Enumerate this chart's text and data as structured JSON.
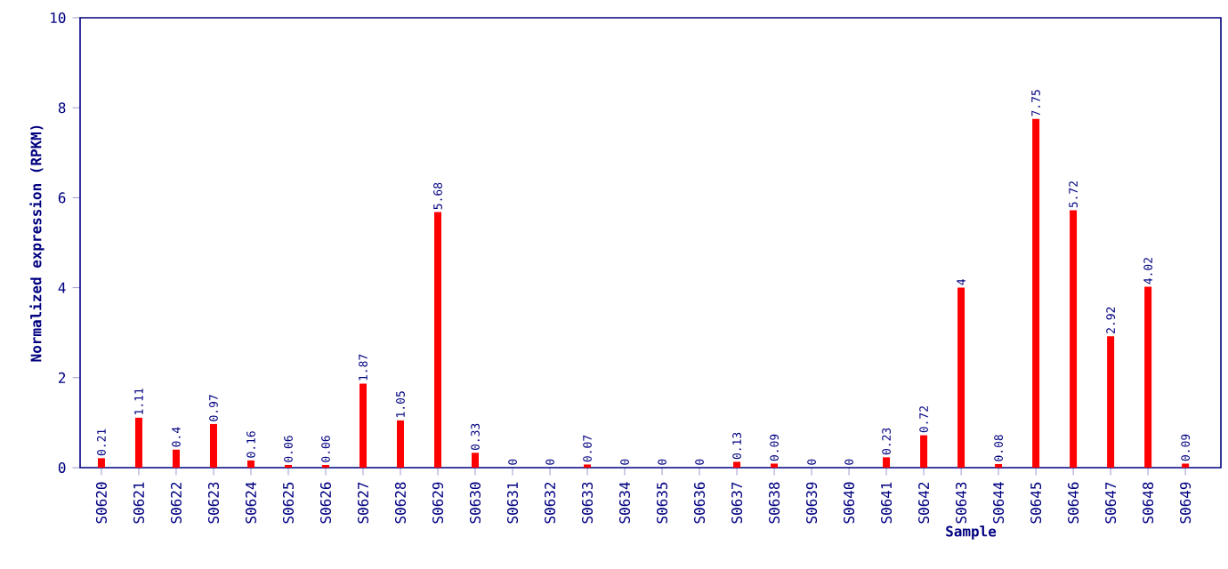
{
  "chart_data": {
    "type": "bar",
    "xlabel": "Sample",
    "ylabel": "Normalized expression (RPKM)",
    "categories": [
      "S0620",
      "S0621",
      "S0622",
      "S0623",
      "S0624",
      "S0625",
      "S0626",
      "S0627",
      "S0628",
      "S0629",
      "S0630",
      "S0631",
      "S0632",
      "S0633",
      "S0634",
      "S0635",
      "S0636",
      "S0637",
      "S0638",
      "S0639",
      "S0640",
      "S0641",
      "S0642",
      "S0643",
      "S0644",
      "S0645",
      "S0646",
      "S0647",
      "S0648",
      "S0649"
    ],
    "values": [
      0.21,
      1.11,
      0.4,
      0.97,
      0.16,
      0.06,
      0.06,
      1.87,
      1.05,
      5.68,
      0.33,
      0,
      0,
      0.07,
      0,
      0,
      0,
      0.13,
      0.09,
      0,
      0,
      0.23,
      0.72,
      4,
      0.08,
      7.75,
      5.72,
      2.92,
      4.02,
      0.09
    ],
    "color": "#ff0000",
    "ylim": [
      0,
      10
    ],
    "yticks": [
      0,
      2,
      4,
      6,
      8,
      10
    ],
    "data_labels": true
  }
}
